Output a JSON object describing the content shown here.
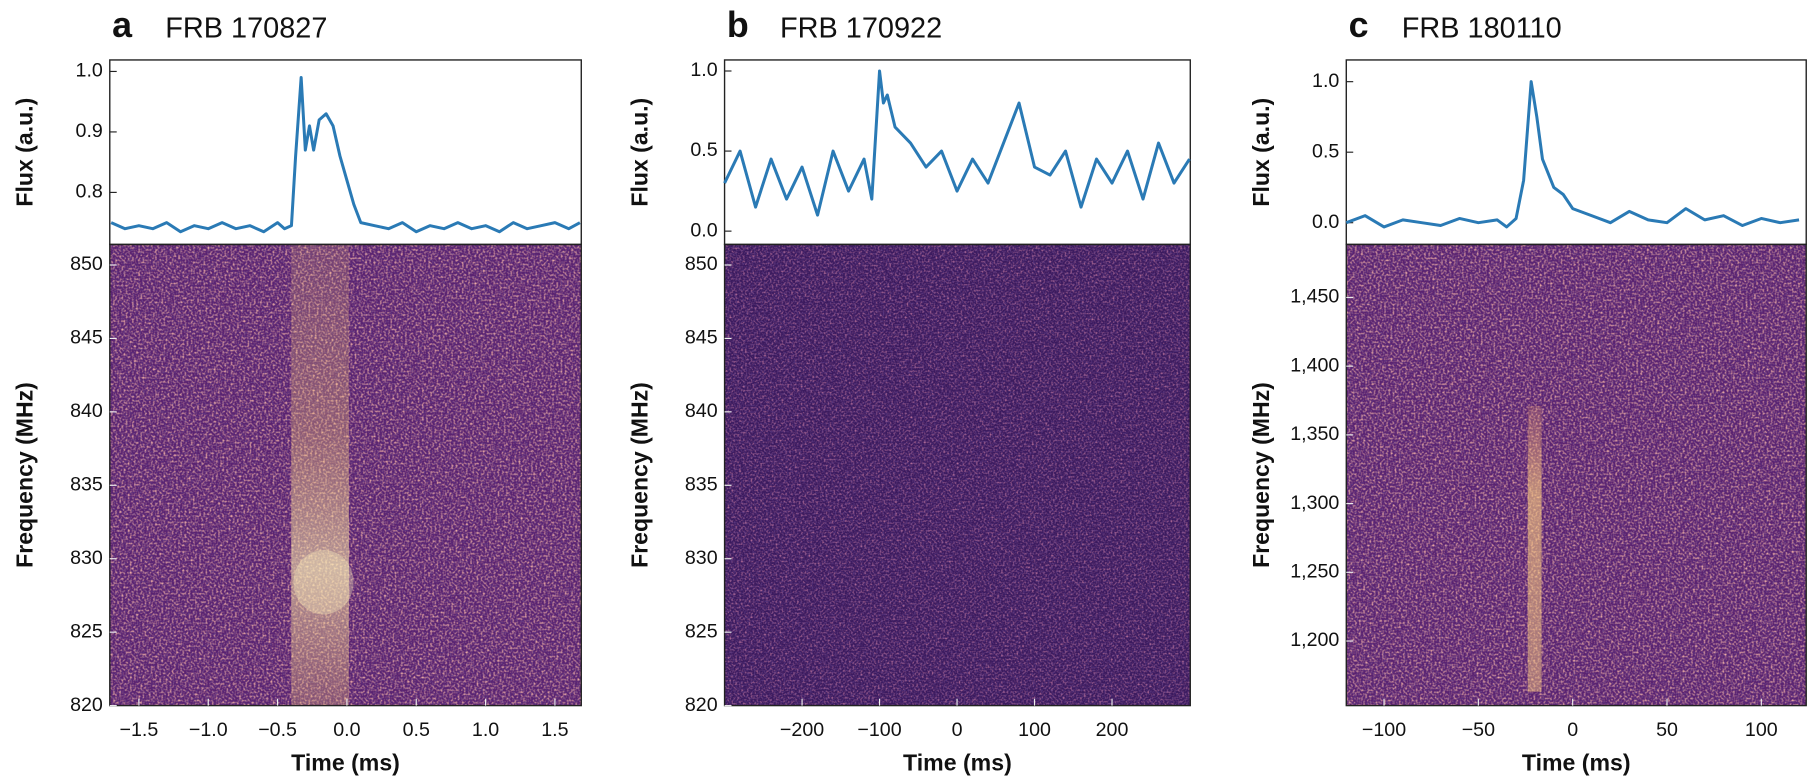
{
  "chart_data": [
    {
      "type": "line",
      "panel": "a",
      "title": "FRB 170827",
      "ylabel": "Flux (a.u.)",
      "color": "#2a7ab5",
      "x": [
        -1.7,
        -1.6,
        -1.5,
        -1.4,
        -1.3,
        -1.2,
        -1.1,
        -1.0,
        -0.9,
        -0.8,
        -0.7,
        -0.6,
        -0.5,
        -0.45,
        -0.4,
        -0.37,
        -0.33,
        -0.3,
        -0.27,
        -0.24,
        -0.2,
        -0.15,
        -0.1,
        -0.05,
        0.0,
        0.05,
        0.1,
        0.2,
        0.3,
        0.4,
        0.5,
        0.6,
        0.7,
        0.8,
        0.9,
        1.0,
        1.1,
        1.2,
        1.3,
        1.4,
        1.5,
        1.6,
        1.68
      ],
      "values": [
        0.75,
        0.74,
        0.745,
        0.74,
        0.75,
        0.735,
        0.745,
        0.74,
        0.75,
        0.74,
        0.745,
        0.735,
        0.75,
        0.74,
        0.745,
        0.86,
        0.99,
        0.87,
        0.91,
        0.87,
        0.92,
        0.93,
        0.91,
        0.86,
        0.82,
        0.78,
        0.75,
        0.745,
        0.74,
        0.75,
        0.735,
        0.745,
        0.74,
        0.75,
        0.74,
        0.745,
        0.735,
        0.75,
        0.74,
        0.745,
        0.75,
        0.74,
        0.75
      ],
      "xlim": [
        -1.71,
        1.69
      ],
      "ylim": [
        0.714,
        1.019
      ],
      "yticks": [
        0.8,
        0.9,
        {
          "value": 1.0,
          "label": "1.0"
        }
      ]
    },
    {
      "type": "heatmap",
      "xlabel": "Time (ms)",
      "ylabel": "Frequency (MHz)",
      "xlim": [
        -1.71,
        1.69
      ],
      "ylim": [
        820,
        851.4
      ],
      "xticks": [
        {
          "value": -1.5,
          "label": "−1.5"
        },
        {
          "value": -1.0,
          "label": "−1.0"
        },
        {
          "value": -0.5,
          "label": "−0.5"
        },
        {
          "value": 0,
          "label": "0.0"
        },
        0.5,
        {
          "value": 1.0,
          "label": "1.0"
        },
        1.5
      ],
      "yticks": [
        820,
        825,
        830,
        835,
        840,
        845,
        850
      ]
    },
    {
      "type": "line",
      "panel": "b",
      "title": "FRB 170922",
      "ylabel": "Flux (a.u.)",
      "color": "#2a7ab5",
      "x": [
        -300,
        -280,
        -260,
        -240,
        -220,
        -200,
        -180,
        -160,
        -140,
        -120,
        -110,
        -100,
        -95,
        -90,
        -80,
        -60,
        -40,
        -20,
        0,
        20,
        40,
        60,
        80,
        100,
        120,
        140,
        160,
        180,
        200,
        220,
        240,
        260,
        280,
        300
      ],
      "values": [
        0.3,
        0.5,
        0.15,
        0.45,
        0.2,
        0.4,
        0.1,
        0.5,
        0.25,
        0.45,
        0.2,
        1.0,
        0.8,
        0.85,
        0.65,
        0.55,
        0.4,
        0.5,
        0.25,
        0.45,
        0.3,
        0.55,
        0.8,
        0.4,
        0.35,
        0.5,
        0.15,
        0.45,
        0.3,
        0.5,
        0.2,
        0.55,
        0.3,
        0.45
      ],
      "xlim": [
        -300,
        301
      ],
      "ylim": [
        -0.083,
        1.069
      ],
      "yticks": [
        {
          "value": 0,
          "label": "0.0"
        },
        0.5,
        {
          "value": 1.0,
          "label": "1.0"
        }
      ]
    },
    {
      "type": "heatmap",
      "xlabel": "Time (ms)",
      "ylabel": "Frequency (MHz)",
      "xlim": [
        -300,
        301
      ],
      "ylim": [
        820,
        851.4
      ],
      "xticks": [
        {
          "value": -200,
          "label": "−200"
        },
        {
          "value": -100,
          "label": "−100"
        },
        0,
        100,
        200
      ],
      "yticks": [
        820,
        825,
        830,
        835,
        840,
        845,
        850
      ]
    },
    {
      "type": "line",
      "panel": "c",
      "title": "FRB 180110",
      "ylabel": "Flux (a.u.)",
      "color": "#2a7ab5",
      "x": [
        -120,
        -110,
        -100,
        -90,
        -80,
        -70,
        -60,
        -50,
        -40,
        -35,
        -30,
        -26,
        -22,
        -19,
        -16,
        -13,
        -10,
        -5,
        0,
        10,
        20,
        30,
        40,
        50,
        60,
        70,
        80,
        90,
        100,
        110,
        120
      ],
      "values": [
        0.0,
        0.05,
        -0.03,
        0.02,
        0.0,
        -0.02,
        0.03,
        0.0,
        0.02,
        -0.03,
        0.03,
        0.3,
        1.0,
        0.75,
        0.45,
        0.35,
        0.25,
        0.2,
        0.1,
        0.05,
        0.0,
        0.08,
        0.02,
        0.0,
        0.1,
        0.02,
        0.05,
        -0.02,
        0.03,
        0.0,
        0.02
      ],
      "xlim": [
        -120,
        123.8
      ],
      "ylim": [
        -0.154,
        1.154
      ],
      "yticks": [
        {
          "value": 0,
          "label": "0.0"
        },
        0.5,
        {
          "value": 1.0,
          "label": "1.0"
        }
      ]
    },
    {
      "type": "heatmap",
      "xlabel": "Time (ms)",
      "ylabel": "Frequency (MHz)",
      "xlim": [
        -120,
        123.8
      ],
      "ylim": [
        1153,
        1488.6
      ],
      "xticks": [
        {
          "value": -100,
          "label": "−100"
        },
        {
          "value": -50,
          "label": "−50"
        },
        0,
        50,
        100
      ],
      "yticks": [
        {
          "value": 1200,
          "label": "1,200"
        },
        {
          "value": 1250,
          "label": "1,250"
        },
        {
          "value": 1300,
          "label": "1,300"
        },
        {
          "value": 1350,
          "label": "1,350"
        },
        {
          "value": 1400,
          "label": "1,400"
        },
        {
          "value": 1450,
          "label": "1,450"
        }
      ]
    }
  ]
}
